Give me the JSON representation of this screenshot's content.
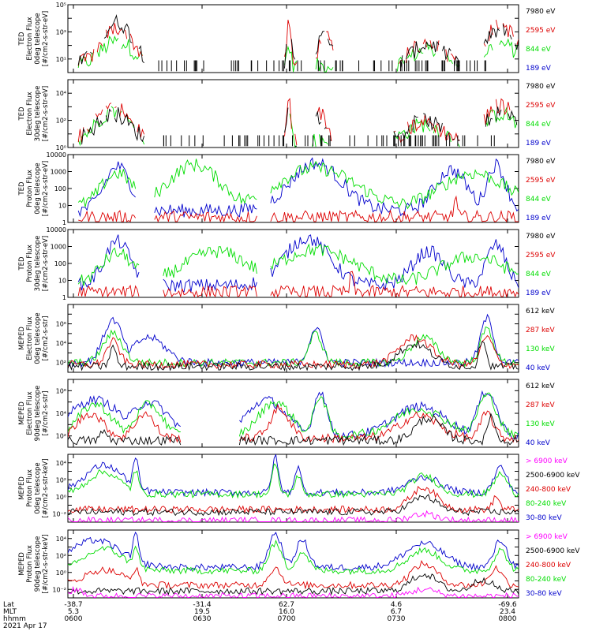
{
  "colors": {
    "black": "#000000",
    "red": "#dd0000",
    "green": "#00dd00",
    "blue": "#0000cc",
    "magenta": "#ff00ff"
  },
  "footer": {
    "row_labels": [
      "Lat",
      "MLT",
      "hhmm",
      "2021 Apr 17"
    ],
    "ticks": [
      {
        "lat": "-38.7",
        "mlt": "5.3",
        "hhmm": "0600"
      },
      {
        "lat": "-31.4",
        "mlt": "19.5",
        "hhmm": "0630"
      },
      {
        "lat": "62.7",
        "mlt": "16.0",
        "hhmm": "0700"
      },
      {
        "lat": "4.6",
        "mlt": "6.7",
        "hhmm": "0730"
      },
      {
        "lat": "-69.6",
        "mlt": "23.4",
        "hhmm": "0800"
      }
    ]
  },
  "chart_data": [
    {
      "type": "line",
      "ylabel": [
        "TED",
        "Electron Flux",
        "0deg telescope",
        "[#/cm2-s-str-eV]"
      ],
      "yscale": "log",
      "ylim_exp": [
        0,
        5
      ],
      "yticks": [
        {
          "e": 1,
          "t": "10¹"
        },
        {
          "e": 3,
          "t": "10³"
        },
        {
          "e": 5,
          "t": "10⁵"
        }
      ],
      "series": [
        {
          "name": "7980 eV",
          "color": "black"
        },
        {
          "name": "2595 eV",
          "color": "red"
        },
        {
          "name": "844 eV",
          "color": "green"
        },
        {
          "name": "189 eV",
          "color": "blue"
        }
      ]
    },
    {
      "type": "line",
      "ylabel": [
        "TED",
        "Electron Flux",
        "30deg telescope",
        "[#/cm2-s-str-eV]"
      ],
      "yscale": "log",
      "ylim_exp": [
        0,
        5
      ],
      "yticks": [
        {
          "e": 0,
          "t": "10⁰"
        },
        {
          "e": 2,
          "t": "10²"
        },
        {
          "e": 4,
          "t": "10⁴"
        }
      ],
      "series": [
        {
          "name": "7980 eV",
          "color": "black"
        },
        {
          "name": "2595 eV",
          "color": "red"
        },
        {
          "name": "844 eV",
          "color": "green"
        },
        {
          "name": "189 eV",
          "color": "blue"
        }
      ]
    },
    {
      "type": "line",
      "ylabel": [
        "TED",
        "Proton Flux",
        "0deg telescope",
        "[#/cm2-s-str-eV]"
      ],
      "yscale": "log",
      "ylim_exp": [
        0,
        4
      ],
      "yticks": [
        {
          "e": 0,
          "t": "1"
        },
        {
          "e": 1,
          "t": "10"
        },
        {
          "e": 2,
          "t": "100"
        },
        {
          "e": 3,
          "t": "1000"
        },
        {
          "e": 4,
          "t": "10000"
        }
      ],
      "series": [
        {
          "name": "7980 eV",
          "color": "black"
        },
        {
          "name": "2595 eV",
          "color": "red"
        },
        {
          "name": "844 eV",
          "color": "green"
        },
        {
          "name": "189 eV",
          "color": "blue"
        }
      ]
    },
    {
      "type": "line",
      "ylabel": [
        "TED",
        "Proton Flux",
        "30deg telescope",
        "[#/cm2-s-str-eV]"
      ],
      "yscale": "log",
      "ylim_exp": [
        0,
        4
      ],
      "yticks": [
        {
          "e": 0,
          "t": "1"
        },
        {
          "e": 1,
          "t": "10"
        },
        {
          "e": 2,
          "t": "100"
        },
        {
          "e": 3,
          "t": "1000"
        },
        {
          "e": 4,
          "t": "10000"
        }
      ],
      "series": [
        {
          "name": "7980 eV",
          "color": "black"
        },
        {
          "name": "2595 eV",
          "color": "red"
        },
        {
          "name": "844 eV",
          "color": "green"
        },
        {
          "name": "189 eV",
          "color": "blue"
        }
      ]
    },
    {
      "type": "line",
      "ylabel": [
        "MEPED",
        "Electron Flux",
        "0deg telescope",
        "[#/cm2-s-str]"
      ],
      "yscale": "log",
      "ylim_exp": [
        1,
        8
      ],
      "yticks": [
        {
          "e": 2,
          "t": "10²"
        },
        {
          "e": 4,
          "t": "10⁴"
        },
        {
          "e": 6,
          "t": "10⁶"
        }
      ],
      "series": [
        {
          "name": "612 keV",
          "color": "black"
        },
        {
          "name": "287 keV",
          "color": "red"
        },
        {
          "name": "130 keV",
          "color": "green"
        },
        {
          "name": "40 keV",
          "color": "blue"
        }
      ]
    },
    {
      "type": "line",
      "ylabel": [
        "MEPED",
        "Electron Flux",
        "90deg telescope",
        "[#/cm2-s-str]"
      ],
      "yscale": "log",
      "ylim_exp": [
        1,
        7
      ],
      "yticks": [
        {
          "e": 2,
          "t": "10²"
        },
        {
          "e": 4,
          "t": "10⁴"
        },
        {
          "e": 6,
          "t": "10⁶"
        }
      ],
      "series": [
        {
          "name": "612 keV",
          "color": "black"
        },
        {
          "name": "287 keV",
          "color": "red"
        },
        {
          "name": "130 keV",
          "color": "green"
        },
        {
          "name": "40 keV",
          "color": "blue"
        }
      ]
    },
    {
      "type": "line",
      "ylabel": [
        "MEPED",
        "Proton Flux",
        "0deg telescope",
        "[#/cm2-s-str-keV]"
      ],
      "yscale": "log",
      "ylim_exp": [
        -3,
        5
      ],
      "yticks": [
        {
          "e": -2,
          "t": "10⁻²"
        },
        {
          "e": 0,
          "t": "10⁰"
        },
        {
          "e": 2,
          "t": "10²"
        },
        {
          "e": 4,
          "t": "10⁴"
        }
      ],
      "series": [
        {
          "name": "> 6900 keV",
          "color": "magenta"
        },
        {
          "name": "2500-6900 keV",
          "color": "black"
        },
        {
          "name": "240-800 keV",
          "color": "red"
        },
        {
          "name": "80-240 keV",
          "color": "green"
        },
        {
          "name": "30-80 keV",
          "color": "blue"
        }
      ]
    },
    {
      "type": "line",
      "ylabel": [
        "MEPED",
        "Proton Flux",
        "90deg telescope",
        "[#/cm2-s-str-keV]"
      ],
      "yscale": "log",
      "ylim_exp": [
        -3,
        5
      ],
      "yticks": [
        {
          "e": -2,
          "t": "10⁻²"
        },
        {
          "e": 0,
          "t": "10⁰"
        },
        {
          "e": 2,
          "t": "10²"
        },
        {
          "e": 4,
          "t": "10⁴"
        }
      ],
      "series": [
        {
          "name": "> 6900 keV",
          "color": "magenta"
        },
        {
          "name": "2500-6900 keV",
          "color": "black"
        },
        {
          "name": "240-800 keV",
          "color": "red"
        },
        {
          "name": "80-240 keV",
          "color": "green"
        },
        {
          "name": "30-80 keV",
          "color": "blue"
        }
      ]
    }
  ]
}
